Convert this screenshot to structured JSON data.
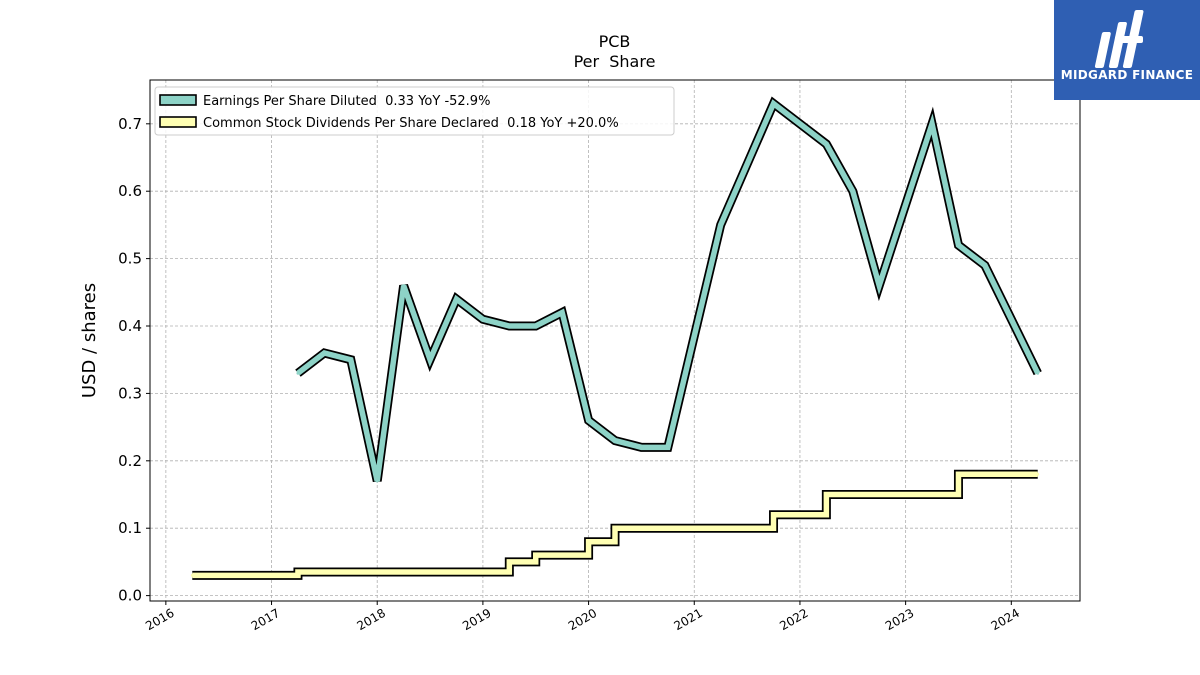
{
  "titles": {
    "line1": "PCB",
    "line2": "Per  Share"
  },
  "brand": {
    "name": "MIDGARD FINANCE",
    "color": "#2f5fb3"
  },
  "chart_data": {
    "type": "line",
    "title": "PCB",
    "subtitle": "Per  Share",
    "xlabel": "",
    "ylabel": "USD / shares",
    "xlim": [
      2015.85,
      2024.65
    ],
    "ylim": [
      -0.008,
      0.765
    ],
    "x_ticks": [
      "2016",
      "2017",
      "2018",
      "2019",
      "2020",
      "2021",
      "2022",
      "2023",
      "2024"
    ],
    "y_ticks": [
      "0.0",
      "0.1",
      "0.2",
      "0.3",
      "0.4",
      "0.5",
      "0.6",
      "0.7"
    ],
    "grid": true,
    "legend_position": "top-left",
    "series": [
      {
        "name": "Earnings Per Share Diluted  0.33 YoY -52.9%",
        "color": "#8dd3c7",
        "step": false,
        "x": [
          2017.25,
          2017.5,
          2017.75,
          2018.0,
          2018.25,
          2018.5,
          2018.75,
          2019.0,
          2019.25,
          2019.5,
          2019.75,
          2020.0,
          2020.25,
          2020.5,
          2020.75,
          2021.25,
          2021.5,
          2021.75,
          2022.0,
          2022.25,
          2022.5,
          2022.75,
          2023.0,
          2023.25,
          2023.5,
          2023.75,
          2024.0,
          2024.25
        ],
        "y": [
          0.33,
          0.36,
          0.35,
          0.17,
          0.46,
          0.35,
          0.44,
          0.41,
          0.4,
          0.4,
          0.42,
          0.26,
          0.23,
          0.22,
          0.22,
          0.55,
          0.64,
          0.73,
          0.7,
          0.67,
          0.6,
          0.46,
          0.58,
          0.7,
          0.52,
          0.49,
          0.41,
          0.33
        ]
      },
      {
        "name": "Common Stock Dividends Per Share Declared  0.18 YoY +20.0%",
        "color": "#ffffb3",
        "step": true,
        "x": [
          2016.25,
          2016.5,
          2016.75,
          2017.0,
          2017.25,
          2017.5,
          2017.75,
          2018.0,
          2018.25,
          2018.5,
          2018.75,
          2019.0,
          2019.25,
          2019.5,
          2019.75,
          2020.0,
          2020.25,
          2020.5,
          2020.75,
          2021.0,
          2021.25,
          2021.5,
          2021.75,
          2022.0,
          2022.25,
          2022.5,
          2022.75,
          2023.0,
          2023.25,
          2023.5,
          2023.75,
          2024.0,
          2024.25
        ],
        "y": [
          0.03,
          0.03,
          0.03,
          0.03,
          0.035,
          0.035,
          0.035,
          0.035,
          0.035,
          0.035,
          0.035,
          0.035,
          0.05,
          0.06,
          0.06,
          0.08,
          0.1,
          0.1,
          0.1,
          0.1,
          0.1,
          0.1,
          0.12,
          0.12,
          0.15,
          0.15,
          0.15,
          0.15,
          0.15,
          0.18,
          0.18,
          0.18,
          0.18
        ]
      }
    ]
  }
}
